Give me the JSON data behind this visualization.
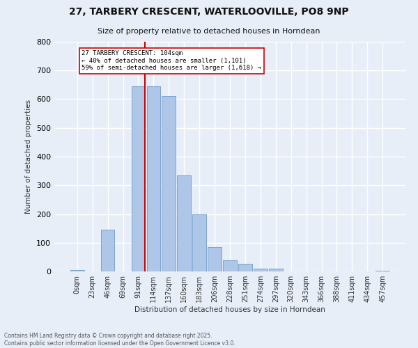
{
  "title_line1": "27, TARBERY CRESCENT, WATERLOOVILLE, PO8 9NP",
  "title_line2": "Size of property relative to detached houses in Horndean",
  "xlabel": "Distribution of detached houses by size in Horndean",
  "ylabel": "Number of detached properties",
  "bar_labels": [
    "0sqm",
    "23sqm",
    "46sqm",
    "69sqm",
    "91sqm",
    "114sqm",
    "137sqm",
    "160sqm",
    "183sqm",
    "206sqm",
    "228sqm",
    "251sqm",
    "274sqm",
    "297sqm",
    "320sqm",
    "343sqm",
    "366sqm",
    "388sqm",
    "411sqm",
    "434sqm",
    "457sqm"
  ],
  "bar_values": [
    5,
    0,
    145,
    0,
    645,
    645,
    610,
    335,
    200,
    85,
    40,
    27,
    10,
    10,
    0,
    0,
    0,
    0,
    0,
    0,
    2
  ],
  "bar_color": "#aec6e8",
  "bar_edge_color": "#5a8fc2",
  "vline_x": 4.45,
  "vline_color": "#cc0000",
  "annotation_text": "27 TARBERY CRESCENT: 104sqm\n← 40% of detached houses are smaller (1,101)\n59% of semi-detached houses are larger (1,618) →",
  "annotation_box_color": "#ffffff",
  "annotation_box_edge": "#cc0000",
  "ylim": [
    0,
    800
  ],
  "yticks": [
    0,
    100,
    200,
    300,
    400,
    500,
    600,
    700,
    800
  ],
  "footer_line1": "Contains HM Land Registry data © Crown copyright and database right 2025.",
  "footer_line2": "Contains public sector information licensed under the Open Government Licence v3.0.",
  "bg_color": "#e8eef8",
  "plot_bg_color": "#e8eef8",
  "grid_color": "#ffffff"
}
